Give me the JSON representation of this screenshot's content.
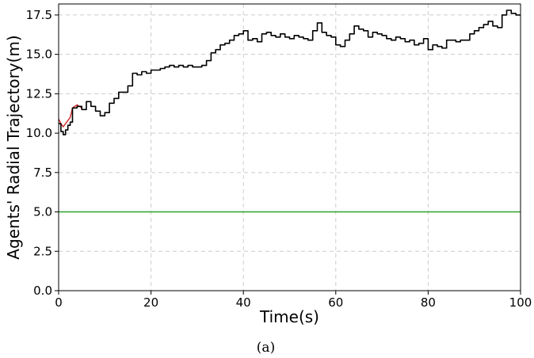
{
  "chart_data": {
    "type": "line",
    "xlabel": "Time(s)",
    "ylabel": "Agents' Radial Trajectory(m)",
    "caption": "(a)",
    "xlim": [
      0,
      100
    ],
    "ylim": [
      0,
      18.2
    ],
    "xticks": [
      0,
      20,
      40,
      60,
      80,
      100
    ],
    "yticks": [
      0.0,
      2.5,
      5.0,
      7.5,
      10.0,
      12.5,
      15.0,
      17.5
    ],
    "ytick_labels": [
      "0.0",
      "2.5",
      "5.0",
      "7.5",
      "10.0",
      "12.5",
      "15.0",
      "17.5"
    ],
    "grid": true,
    "series": [
      {
        "color": "#2ca02c",
        "x": [
          0,
          100
        ],
        "y": [
          5.0,
          5.0
        ]
      },
      {
        "color": "#d62728",
        "x": [
          0,
          0.5,
          1,
          1.5,
          2,
          2.5,
          3,
          4,
          5
        ],
        "y": [
          10.9,
          10.6,
          10.4,
          10.6,
          10.8,
          11.0,
          11.6,
          11.8,
          11.6
        ]
      },
      {
        "color": "#000000",
        "x": [
          0,
          0.5,
          1,
          1.5,
          2,
          2.5,
          3,
          4,
          5,
          6,
          7,
          8,
          9,
          10,
          11,
          12,
          13,
          14,
          15,
          16,
          17,
          18,
          19,
          20,
          21,
          22,
          23,
          24,
          25,
          26,
          27,
          28,
          29,
          30,
          31,
          32,
          33,
          34,
          35,
          36,
          37,
          38,
          39,
          40,
          41,
          42,
          43,
          44,
          45,
          46,
          47,
          48,
          49,
          50,
          51,
          52,
          53,
          54,
          55,
          56,
          57,
          58,
          59,
          60,
          61,
          62,
          63,
          64,
          65,
          66,
          67,
          68,
          69,
          70,
          71,
          72,
          73,
          74,
          75,
          76,
          77,
          78,
          79,
          80,
          81,
          82,
          83,
          84,
          85,
          86,
          87,
          88,
          89,
          90,
          91,
          92,
          93,
          94,
          95,
          96,
          97,
          98,
          99,
          100
        ],
        "y": [
          10.6,
          10.1,
          9.9,
          10.2,
          10.5,
          10.7,
          11.6,
          11.7,
          11.5,
          12.0,
          11.7,
          11.4,
          11.1,
          11.3,
          11.9,
          12.2,
          12.6,
          12.6,
          13.0,
          13.8,
          13.7,
          13.9,
          13.8,
          14.0,
          14.0,
          14.1,
          14.2,
          14.3,
          14.2,
          14.3,
          14.2,
          14.3,
          14.2,
          14.2,
          14.3,
          14.6,
          15.1,
          15.3,
          15.6,
          15.7,
          15.9,
          16.2,
          16.3,
          16.5,
          15.9,
          16.0,
          15.8,
          16.3,
          16.4,
          16.2,
          16.1,
          16.3,
          16.1,
          16.0,
          16.2,
          16.1,
          16.0,
          15.9,
          16.5,
          17.0,
          16.4,
          16.2,
          16.1,
          15.6,
          15.5,
          15.9,
          16.3,
          16.8,
          16.6,
          16.5,
          16.1,
          16.4,
          16.3,
          16.2,
          16.0,
          15.9,
          16.1,
          16.0,
          15.8,
          15.9,
          15.6,
          15.7,
          16.0,
          15.3,
          15.6,
          15.5,
          15.4,
          15.9,
          15.9,
          15.8,
          15.9,
          15.9,
          16.3,
          16.5,
          16.7,
          16.9,
          17.1,
          16.8,
          16.7,
          17.5,
          17.8,
          17.6,
          17.5,
          17.5
        ]
      }
    ]
  }
}
